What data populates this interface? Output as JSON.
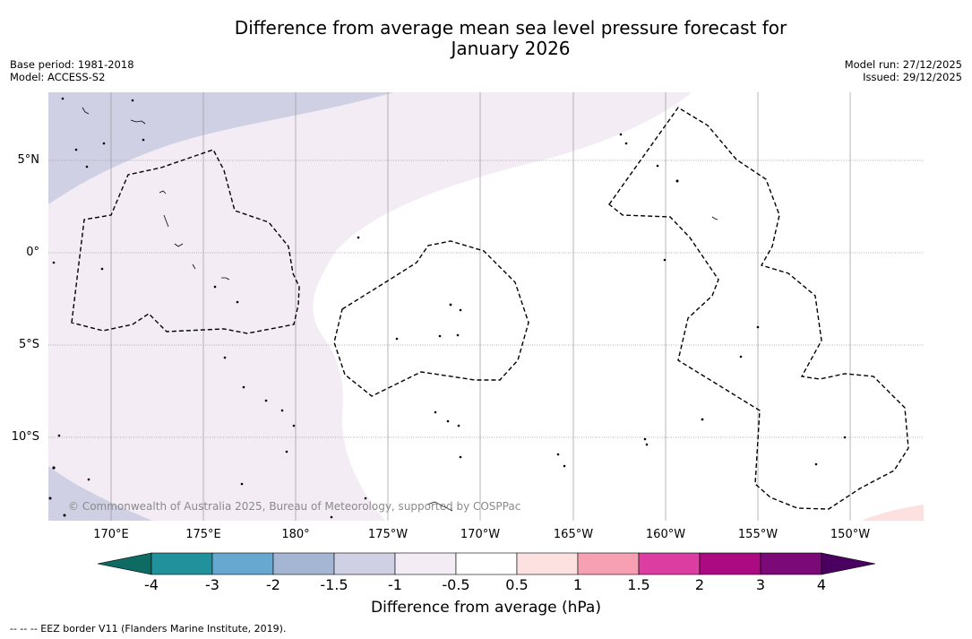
{
  "header": {
    "title_line1": "Difference from average mean sea level pressure forecast for",
    "title_line2": "January 2026",
    "base_period": "Base period: 1981-2018",
    "model": "Model: ACCESS-S2",
    "model_run": "Model run: 27/12/2025",
    "issued": "Issued: 29/12/2025"
  },
  "map": {
    "lat_labels": [
      "5°N",
      "0°",
      "5°S",
      "10°S"
    ],
    "lon_labels": [
      "170°E",
      "175°E",
      "180°",
      "175°W",
      "170°W",
      "165°W",
      "160°W",
      "155°W",
      "150°W"
    ],
    "copyright": "© Commonwealth of Australia 2025, Bureau of Meteorology, supported by COSPPac"
  },
  "colorbar": {
    "ticks": [
      "-4",
      "-3",
      "-2",
      "-1.5",
      "-1",
      "-0.5",
      "0.5",
      "1",
      "1.5",
      "2",
      "3",
      "4"
    ],
    "colors": [
      "#0e6b63",
      "#21919c",
      "#67a8d1",
      "#a5b6d4",
      "#cfd0e4",
      "#f3ecf5",
      "#ffffff",
      "#fde0e0",
      "#f7a0b4",
      "#db3da0",
      "#ab0a82",
      "#7b0a78",
      "#4a0060"
    ],
    "label": "Difference from average (hPa)"
  },
  "footnote": "--  --  -- EEZ border V11 (Flanders Marine Institute, 2019)."
}
